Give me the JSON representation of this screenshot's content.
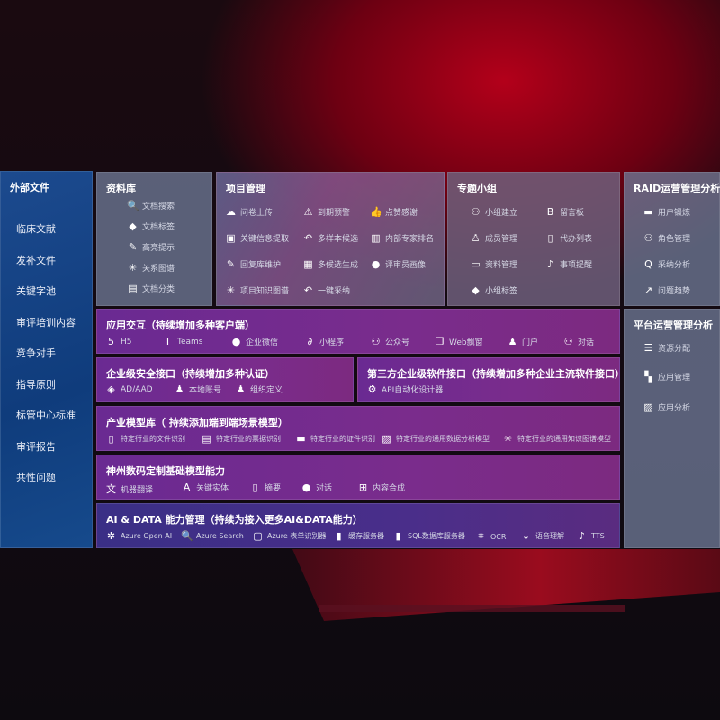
{
  "external": {
    "title": "外部文件",
    "items": [
      "临床文献",
      "发补文件",
      "关键字池",
      "审评培训内容",
      "竞争对手",
      "指导原则",
      "标管中心标准",
      "审评报告",
      "共性问题"
    ]
  },
  "library": {
    "title": "资料库",
    "items": [
      {
        "icon": "doc-search-icon",
        "label": "文档搜索"
      },
      {
        "icon": "tag-icon",
        "label": "文档标签"
      },
      {
        "icon": "pen-icon",
        "label": "高亮提示"
      },
      {
        "icon": "graph-icon",
        "label": "关系图谱"
      },
      {
        "icon": "doc-stack-icon",
        "label": "文档分类"
      }
    ]
  },
  "project": {
    "title": "项目管理",
    "items": [
      {
        "icon": "cloud-upload-icon",
        "label": "问卷上传"
      },
      {
        "icon": "alarm-icon",
        "label": "到期预警"
      },
      {
        "icon": "thumbs-up-icon",
        "label": "点赞感谢"
      },
      {
        "icon": "extract-icon",
        "label": "关键信息提取"
      },
      {
        "icon": "reply-icon",
        "label": "多样本候选"
      },
      {
        "icon": "ranking-icon",
        "label": "内部专家排名"
      },
      {
        "icon": "edit-icon",
        "label": "回复库维护"
      },
      {
        "icon": "puzzle-icon",
        "label": "多候选生成"
      },
      {
        "icon": "user-icon",
        "label": "评审员画像"
      },
      {
        "icon": "graph-icon",
        "label": "项目知识图谱"
      },
      {
        "icon": "reply-icon",
        "label": "一键采纳"
      }
    ]
  },
  "group": {
    "title": "专题小组",
    "items": [
      {
        "icon": "group-icon",
        "label": "小组建立"
      },
      {
        "icon": "bbs-icon",
        "label": "留言板"
      },
      {
        "icon": "user-add-icon",
        "label": "成员管理"
      },
      {
        "icon": "clipboard-icon",
        "label": "代办列表"
      },
      {
        "icon": "folder-icon",
        "label": "资料管理"
      },
      {
        "icon": "bell-icon",
        "label": "事项提醒"
      },
      {
        "icon": "tag-icon",
        "label": "小组标签"
      }
    ]
  },
  "raid": {
    "title": "RAID运营管理分析",
    "items": [
      {
        "icon": "id-card-icon",
        "label": "用户锻炼"
      },
      {
        "icon": "group-icon",
        "label": "角色管理"
      },
      {
        "icon": "qa-icon",
        "label": "采纳分析"
      },
      {
        "icon": "trend-icon",
        "label": "问题趋势"
      }
    ]
  },
  "platform": {
    "title": "平台运营管理分析",
    "items": [
      {
        "icon": "list-icon",
        "label": "资源分配"
      },
      {
        "icon": "apps-icon",
        "label": "应用管理"
      },
      {
        "icon": "chart-icon",
        "label": "应用分析"
      }
    ]
  },
  "app": {
    "title": "应用交互（持续增加多种客户端）",
    "items": [
      {
        "icon": "html5-icon",
        "label": "H5"
      },
      {
        "icon": "teams-icon",
        "label": "Teams"
      },
      {
        "icon": "wechat-work-icon",
        "label": "企业微信"
      },
      {
        "icon": "miniprogram-icon",
        "label": "小程序"
      },
      {
        "icon": "official-account-icon",
        "label": "公众号"
      },
      {
        "icon": "window-icon",
        "label": "Web飘窗"
      },
      {
        "icon": "portal-icon",
        "label": "门户"
      },
      {
        "icon": "chat-users-icon",
        "label": "对话"
      }
    ]
  },
  "security": {
    "title": "企业级安全接口（持续增加多种认证）",
    "items": [
      {
        "icon": "azure-ad-icon",
        "label": "AD/AAD"
      },
      {
        "icon": "local-user-icon",
        "label": "本地账号"
      },
      {
        "icon": "org-icon",
        "label": "组织定义"
      }
    ]
  },
  "thirdparty": {
    "title": "第三方企业级软件接口（持续增加多种企业主流软件接口）",
    "items": [
      {
        "icon": "gear-icon",
        "label": "API自动化设计器"
      }
    ]
  },
  "industry": {
    "title": "产业模型库（ 持续添加端到端场景模型）",
    "items": [
      {
        "icon": "file-icon",
        "label": "特定行业的文件识别"
      },
      {
        "icon": "receipt-icon",
        "label": "特定行业的票据识别"
      },
      {
        "icon": "id-card-icon",
        "label": "特定行业的证件识别"
      },
      {
        "icon": "data-chart-icon",
        "label": "特定行业的通用数据分析模型"
      },
      {
        "icon": "graph-icon",
        "label": "特定行业的通用知识图谱模型"
      }
    ]
  },
  "base": {
    "title": "神州数码定制基础模型能力",
    "items": [
      {
        "icon": "translate-icon",
        "label": "机器翻译"
      },
      {
        "icon": "entity-icon",
        "label": "关键实体"
      },
      {
        "icon": "summary-icon",
        "label": "摘要"
      },
      {
        "icon": "chat-icon",
        "label": "对话"
      },
      {
        "icon": "compose-icon",
        "label": "内容合成"
      }
    ]
  },
  "ai": {
    "title": "AI & DATA 能力管理（持续为接入更多AI&DATA能力）",
    "items": [
      {
        "icon": "openai-icon",
        "label": "Azure Open AI"
      },
      {
        "icon": "search-doc-icon",
        "label": "Azure Search"
      },
      {
        "icon": "form-recognizer-icon",
        "label": "Azure 表单识别器"
      },
      {
        "icon": "cache-icon",
        "label": "缓存服务器"
      },
      {
        "icon": "sql-icon",
        "label": "SQL数据库服务器"
      },
      {
        "icon": "ocr-icon",
        "label": "OCR"
      },
      {
        "icon": "speech-icon",
        "label": "语音理解"
      },
      {
        "icon": "tts-icon",
        "label": "TTS"
      }
    ]
  }
}
